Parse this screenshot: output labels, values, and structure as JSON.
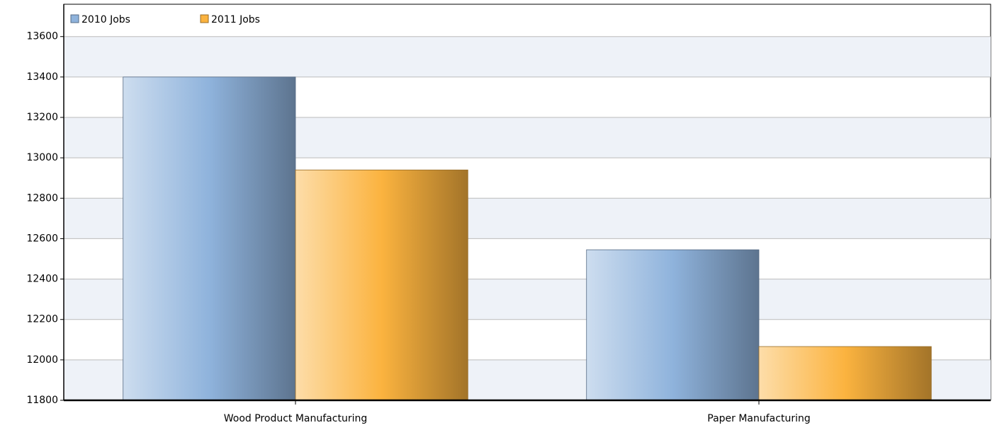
{
  "chart_data": {
    "type": "bar",
    "categories": [
      "Wood Product Manufacturing",
      "Paper Manufacturing"
    ],
    "series": [
      {
        "name": "2010 Jobs",
        "color": "#8fb3dc",
        "values": [
          13400,
          12545
        ]
      },
      {
        "name": "2011 Jobs",
        "color": "#fbb33f",
        "values": [
          12940,
          12066
        ]
      }
    ],
    "ylim": [
      11800,
      13760
    ],
    "yticks": [
      11800,
      12000,
      12200,
      12400,
      12600,
      12800,
      13000,
      13200,
      13400,
      13600
    ],
    "grid": true,
    "legend": "top-left"
  }
}
